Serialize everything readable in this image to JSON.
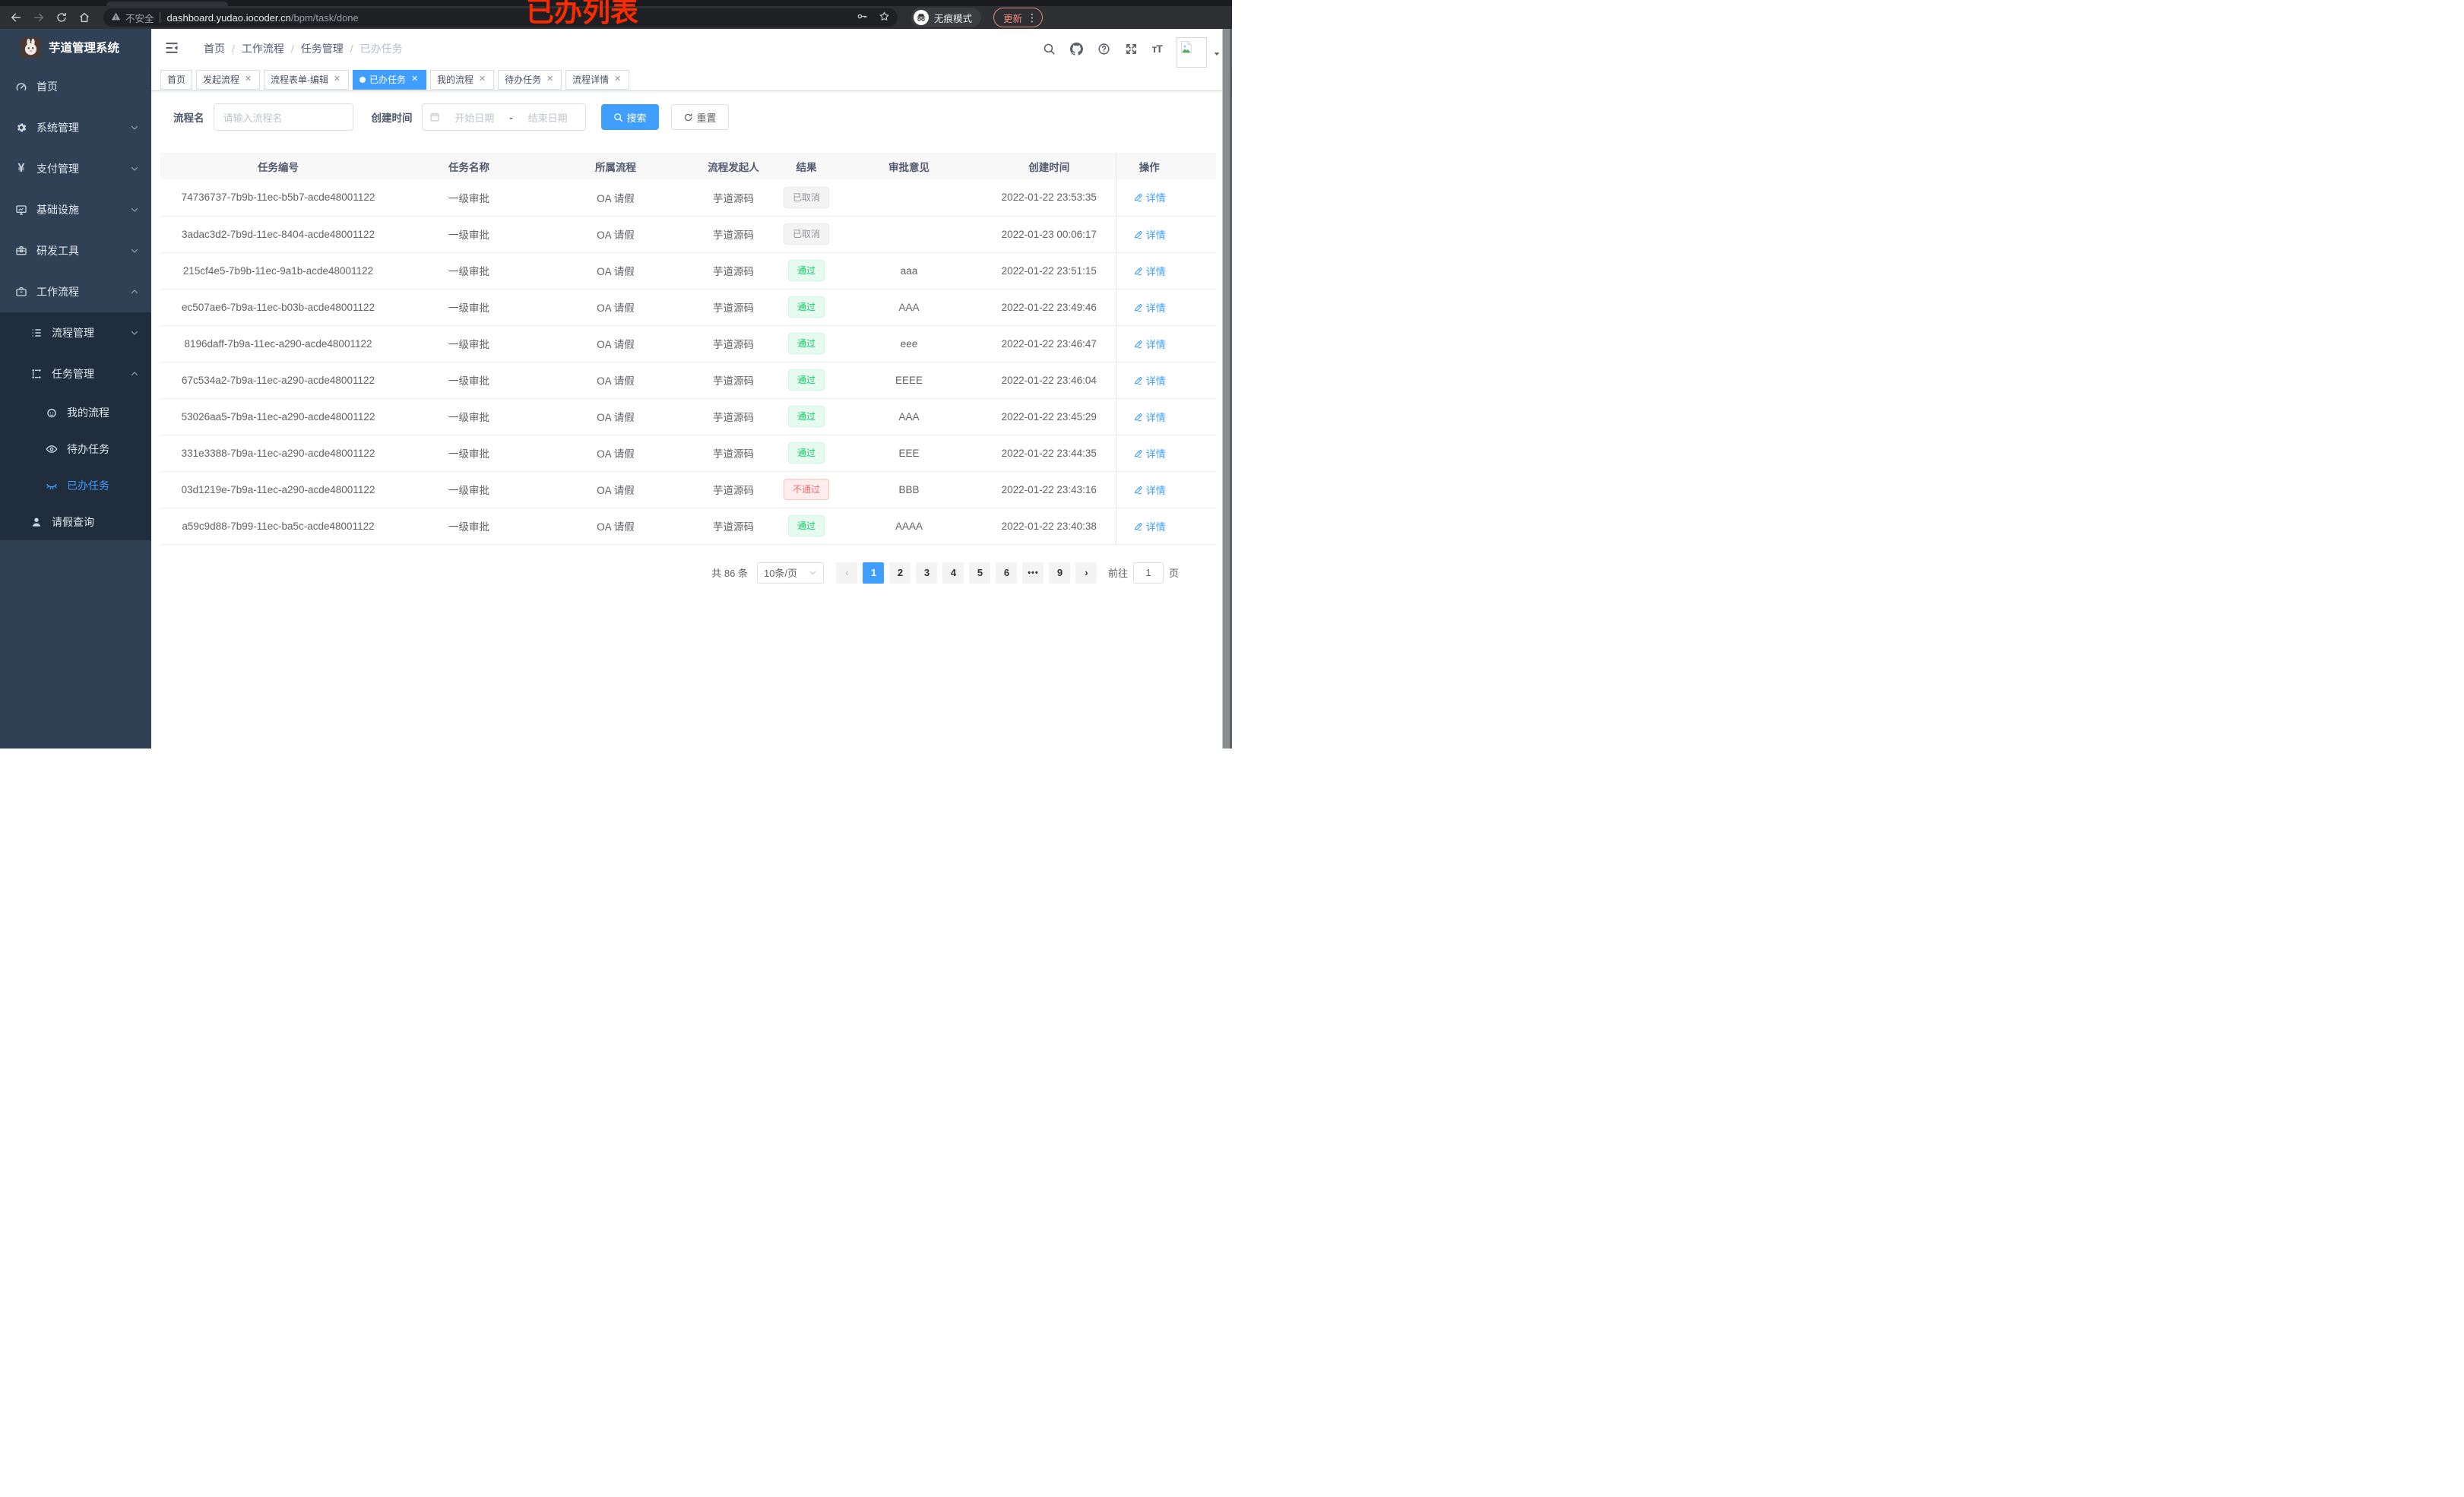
{
  "browser": {
    "security_label": "不安全",
    "url_host": "dashboard.yudao.iocoder.cn",
    "url_path": "/bpm/task/done",
    "incognito_label": "无痕模式",
    "update_label": "更新",
    "kebab": "⋮"
  },
  "annotation": "已办列表",
  "sidebar": {
    "title": "芋道管理系统",
    "items": [
      {
        "label": "首页",
        "icon": "gauge",
        "depth": 0,
        "chevron": null,
        "dark": false,
        "active": false
      },
      {
        "label": "系统管理",
        "icon": "gear",
        "depth": 0,
        "chevron": "down",
        "dark": false,
        "active": false
      },
      {
        "label": "支付管理",
        "icon": "yen",
        "depth": 0,
        "chevron": "down",
        "dark": false,
        "active": false
      },
      {
        "label": "基础设施",
        "icon": "monitor",
        "depth": 0,
        "chevron": "down",
        "dark": false,
        "active": false
      },
      {
        "label": "研发工具",
        "icon": "toolbox",
        "depth": 0,
        "chevron": "down",
        "dark": false,
        "active": false
      },
      {
        "label": "工作流程",
        "icon": "briefcase",
        "depth": 0,
        "chevron": "up",
        "dark": false,
        "active": false
      },
      {
        "label": "流程管理",
        "icon": "listtree",
        "depth": 1,
        "chevron": "down",
        "dark": true,
        "active": false
      },
      {
        "label": "任务管理",
        "icon": "flow",
        "depth": 1,
        "chevron": "up",
        "dark": true,
        "active": false
      },
      {
        "label": "我的流程",
        "icon": "robot",
        "depth": 2,
        "chevron": null,
        "dark": true,
        "active": false
      },
      {
        "label": "待办任务",
        "icon": "eye",
        "depth": 2,
        "chevron": null,
        "dark": true,
        "active": false
      },
      {
        "label": "已办任务",
        "icon": "eyeclosed",
        "depth": 2,
        "chevron": null,
        "dark": true,
        "active": true
      },
      {
        "label": "请假查询",
        "icon": "user",
        "depth": 1,
        "chevron": null,
        "dark": true,
        "active": false
      }
    ]
  },
  "header": {
    "breadcrumb": [
      "首页",
      "工作流程",
      "任务管理",
      "已办任务"
    ]
  },
  "tabs": [
    {
      "label": "首页",
      "closable": false,
      "active": false
    },
    {
      "label": "发起流程",
      "closable": true,
      "active": false
    },
    {
      "label": "流程表单-编辑",
      "closable": true,
      "active": false
    },
    {
      "label": "已办任务",
      "closable": true,
      "active": true
    },
    {
      "label": "我的流程",
      "closable": true,
      "active": false
    },
    {
      "label": "待办任务",
      "closable": true,
      "active": false
    },
    {
      "label": "流程详情",
      "closable": true,
      "active": false
    }
  ],
  "filters": {
    "name_label": "流程名",
    "name_placeholder": "请输入流程名",
    "date_label": "创建时间",
    "date_start_placeholder": "开始日期",
    "date_separator": "-",
    "date_end_placeholder": "结束日期",
    "search_label": "搜索",
    "reset_label": "重置"
  },
  "table": {
    "columns": [
      "任务编号",
      "任务名称",
      "所属流程",
      "流程发起人",
      "结果",
      "审批意见",
      "创建时间",
      "操作"
    ],
    "action_label": "详情",
    "rows": [
      {
        "id": "74736737-7b9b-11ec-b5b7-acde48001122",
        "name": "一级审批",
        "process": "OA 请假",
        "starter": "芋道源码",
        "result": {
          "text": "已取消",
          "type": "info"
        },
        "opinion": "",
        "created": "2022-01-22 23:53:35"
      },
      {
        "id": "3adac3d2-7b9d-11ec-8404-acde48001122",
        "name": "一级审批",
        "process": "OA 请假",
        "starter": "芋道源码",
        "result": {
          "text": "已取消",
          "type": "info"
        },
        "opinion": "",
        "created": "2022-01-23 00:06:17"
      },
      {
        "id": "215cf4e5-7b9b-11ec-9a1b-acde48001122",
        "name": "一级审批",
        "process": "OA 请假",
        "starter": "芋道源码",
        "result": {
          "text": "通过",
          "type": "success"
        },
        "opinion": "aaa",
        "created": "2022-01-22 23:51:15"
      },
      {
        "id": "ec507ae6-7b9a-11ec-b03b-acde48001122",
        "name": "一级审批",
        "process": "OA 请假",
        "starter": "芋道源码",
        "result": {
          "text": "通过",
          "type": "success"
        },
        "opinion": "AAA",
        "created": "2022-01-22 23:49:46"
      },
      {
        "id": "8196daff-7b9a-11ec-a290-acde48001122",
        "name": "一级审批",
        "process": "OA 请假",
        "starter": "芋道源码",
        "result": {
          "text": "通过",
          "type": "success"
        },
        "opinion": "eee",
        "created": "2022-01-22 23:46:47"
      },
      {
        "id": "67c534a2-7b9a-11ec-a290-acde48001122",
        "name": "一级审批",
        "process": "OA 请假",
        "starter": "芋道源码",
        "result": {
          "text": "通过",
          "type": "success"
        },
        "opinion": "EEEE",
        "created": "2022-01-22 23:46:04"
      },
      {
        "id": "53026aa5-7b9a-11ec-a290-acde48001122",
        "name": "一级审批",
        "process": "OA 请假",
        "starter": "芋道源码",
        "result": {
          "text": "通过",
          "type": "success"
        },
        "opinion": "AAA",
        "created": "2022-01-22 23:45:29"
      },
      {
        "id": "331e3388-7b9a-11ec-a290-acde48001122",
        "name": "一级审批",
        "process": "OA 请假",
        "starter": "芋道源码",
        "result": {
          "text": "通过",
          "type": "success"
        },
        "opinion": "EEE",
        "created": "2022-01-22 23:44:35"
      },
      {
        "id": "03d1219e-7b9a-11ec-a290-acde48001122",
        "name": "一级审批",
        "process": "OA 请假",
        "starter": "芋道源码",
        "result": {
          "text": "不通过",
          "type": "danger"
        },
        "opinion": "BBB",
        "created": "2022-01-22 23:43:16"
      },
      {
        "id": "a59c9d88-7b99-11ec-ba5c-acde48001122",
        "name": "一级审批",
        "process": "OA 请假",
        "starter": "芋道源码",
        "result": {
          "text": "通过",
          "type": "success"
        },
        "opinion": "AAAA",
        "created": "2022-01-22 23:40:38"
      }
    ]
  },
  "pagination": {
    "total_label": "共 86 条",
    "page_size_label": "10条/页",
    "prev": "‹",
    "next": "›",
    "pages": [
      "1",
      "2",
      "3",
      "4",
      "5",
      "6",
      "•••",
      "9"
    ],
    "active_page": "1",
    "goto_label": "前往",
    "goto_value": "1",
    "page_unit": "页"
  },
  "colors": {
    "accent": "#409eff",
    "sidebar_bg": "#304156",
    "sidebar_sub_bg": "#1f2d3d",
    "success_text": "#13ce66",
    "danger_text": "#f56c6c",
    "info_text": "#909399",
    "annotation_red": "#fb2a00"
  }
}
